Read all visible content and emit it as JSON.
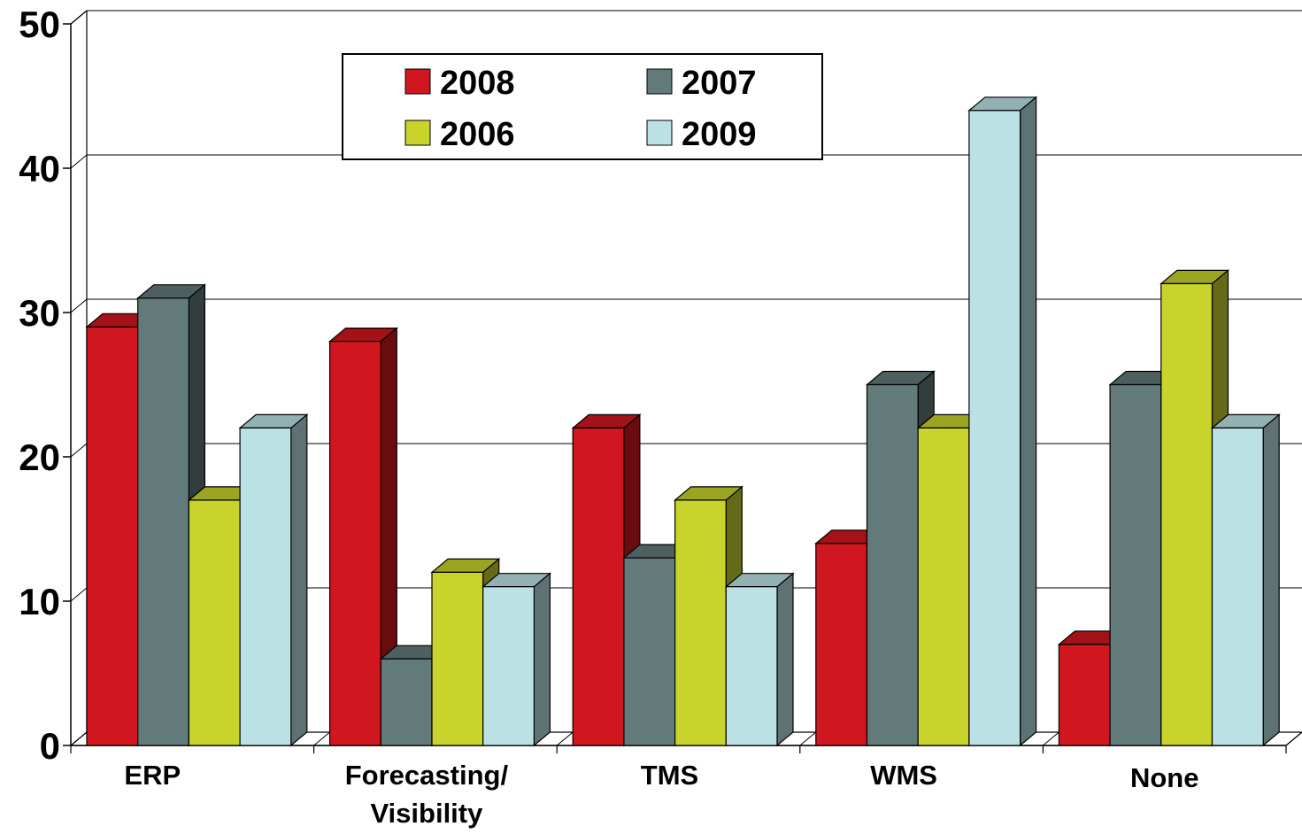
{
  "chart_data": {
    "type": "bar",
    "style": "3d",
    "title": "",
    "xlabel": "",
    "ylabel": "",
    "ylim": [
      0,
      50
    ],
    "yticks": [
      "0",
      "10",
      "20",
      "30",
      "40",
      "50"
    ],
    "grid": true,
    "legend_position": "top-center",
    "categories": [
      {
        "lines": [
          "ERP"
        ]
      },
      {
        "lines": [
          "Forecasting/",
          "Visibility"
        ]
      },
      {
        "lines": [
          "TMS"
        ]
      },
      {
        "lines": [
          "WMS"
        ]
      },
      {
        "lines": [
          "None"
        ]
      }
    ],
    "series": [
      {
        "name": "2008",
        "color": "#D0171F",
        "values": [
          29,
          28,
          22,
          14,
          7
        ]
      },
      {
        "name": "2007",
        "color": "#637A7A",
        "values": [
          31,
          6,
          13,
          25,
          25
        ]
      },
      {
        "name": "2006",
        "color": "#C8D32B",
        "values": [
          17,
          12,
          17,
          22,
          32
        ]
      },
      {
        "name": "2009",
        "color": "#BCE1E5",
        "values": [
          22,
          11,
          11,
          44,
          22
        ]
      }
    ]
  }
}
